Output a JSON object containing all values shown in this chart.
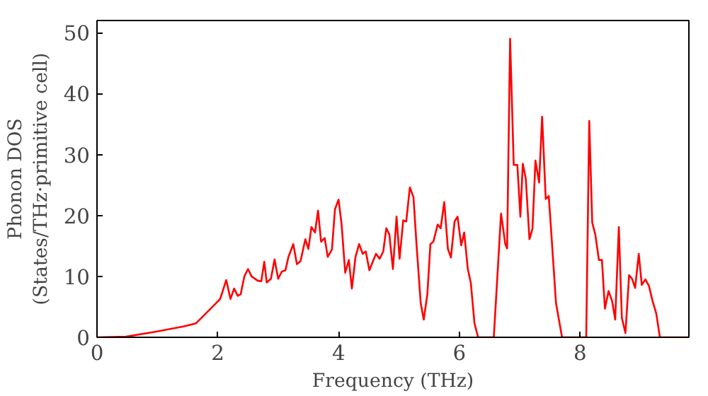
{
  "chart_data": {
    "type": "line",
    "xlabel": "Frequency (THz)",
    "ylabel": "Phonon DOS\n(States/THz·primitive cell)",
    "x": [
      0,
      0.48,
      0.96,
      1.44,
      1.64,
      1.92,
      2.04,
      2.14,
      2.21,
      2.27,
      2.33,
      2.38,
      2.44,
      2.5,
      2.56,
      2.66,
      2.72,
      2.77,
      2.81,
      2.88,
      2.94,
      3.0,
      3.06,
      3.12,
      3.17,
      3.25,
      3.31,
      3.37,
      3.45,
      3.5,
      3.55,
      3.61,
      3.66,
      3.71,
      3.77,
      3.82,
      3.89,
      3.94,
      4.0,
      4.05,
      4.11,
      4.17,
      4.22,
      4.28,
      4.34,
      4.4,
      4.45,
      4.51,
      4.57,
      4.62,
      4.68,
      4.74,
      4.79,
      4.84,
      4.9,
      4.96,
      5.01,
      5.07,
      5.12,
      5.18,
      5.24,
      5.29,
      5.36,
      5.41,
      5.47,
      5.52,
      5.57,
      5.64,
      5.69,
      5.75,
      5.81,
      5.86,
      5.92,
      5.97,
      6.03,
      6.08,
      6.14,
      6.19,
      6.25,
      6.31,
      6.57,
      6.69,
      6.76,
      6.79,
      6.84,
      6.9,
      6.96,
      7.01,
      7.05,
      7.1,
      7.16,
      7.21,
      7.26,
      7.32,
      7.37,
      7.43,
      7.48,
      7.54,
      7.6,
      7.7,
      8.1,
      8.15,
      8.2,
      8.25,
      8.31,
      8.36,
      8.41,
      8.47,
      8.53,
      8.58,
      8.64,
      8.69,
      8.75,
      8.81,
      8.86,
      8.91,
      8.97,
      9.02,
      9.08,
      9.14,
      9.2,
      9.26,
      9.32,
      9.8
    ],
    "series": [
      {
        "color": "#ff0000",
        "values": [
          0,
          0.1,
          0.9,
          1.8,
          2.3,
          5.1,
          6.3,
          9.4,
          6.3,
          8,
          6.8,
          7.1,
          10,
          11.2,
          10,
          9.3,
          9.2,
          12.4,
          9,
          9.6,
          12.8,
          9.6,
          10.8,
          11,
          13.2,
          15.3,
          12,
          12.5,
          16.1,
          14.5,
          18.1,
          17.2,
          20.8,
          15.7,
          16.3,
          13.2,
          14.4,
          21,
          22.6,
          18.5,
          10.6,
          12.7,
          8,
          13.2,
          15.3,
          13.7,
          14.1,
          11,
          12.5,
          13.7,
          12.9,
          14.1,
          17.9,
          16.9,
          11.2,
          19.8,
          12.9,
          19.2,
          19,
          24.6,
          23,
          15.3,
          5.6,
          2.9,
          7.1,
          15.3,
          15.7,
          18.5,
          17.9,
          22.2,
          14.5,
          13.1,
          19,
          19.8,
          15.1,
          17.2,
          11.2,
          8.9,
          2.3,
          0,
          0,
          20.3,
          15.3,
          14.6,
          49,
          28.3,
          28.3,
          19.8,
          28.5,
          26,
          16.1,
          17.8,
          29,
          25.4,
          36.2,
          22.7,
          23.2,
          14.5,
          5.6,
          0,
          0,
          35.5,
          18.8,
          16.9,
          12.7,
          12.7,
          4.7,
          7.6,
          5.9,
          2.9,
          18.1,
          3.2,
          0.7,
          10.2,
          9.6,
          8.1,
          13.7,
          8.6,
          9.5,
          8.4,
          5.9,
          3.9,
          0,
          0
        ]
      }
    ],
    "xlim": [
      0,
      9.8
    ],
    "ylim": [
      0,
      52
    ],
    "xticks": [
      0,
      2,
      4,
      6,
      8
    ],
    "yticks": [
      0,
      10,
      20,
      30,
      40,
      50
    ]
  }
}
